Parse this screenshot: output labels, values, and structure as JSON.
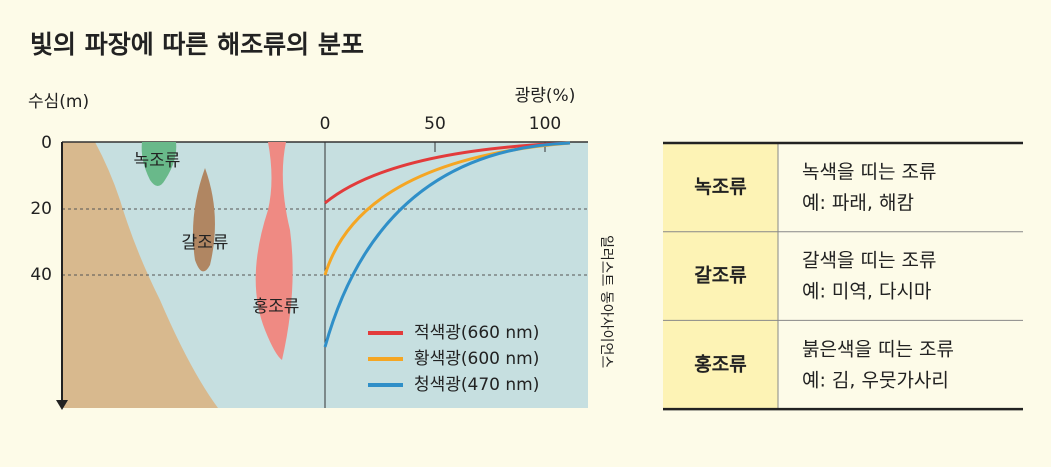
{
  "title": "빛의 파장에 따른 해조류의 분포",
  "diagram": {
    "y_axis_label": "수심(m)",
    "x_axis_label": "광량(%)",
    "depth_ticks": [
      "0",
      "20",
      "40"
    ],
    "light_ticks": [
      "0",
      "50",
      "100"
    ],
    "algae_labels": [
      "녹조류",
      "갈조류",
      "홍조류"
    ],
    "legend": [
      "적색광(660 nm)",
      "황색광(600 nm)",
      "청색광(470 nm)"
    ],
    "credit": "일러스트 동아사이언스"
  },
  "table": {
    "rows": [
      [
        "녹조류",
        "녹색을 띠는 조류",
        "예: 파래, 해캄"
      ],
      [
        "갈조류",
        "갈색을 띠는 조류",
        "예: 미역, 다시마"
      ],
      [
        "홍조류",
        "붉은색을 띠는 조류",
        "예: 김, 우뭇가사리"
      ]
    ]
  }
}
